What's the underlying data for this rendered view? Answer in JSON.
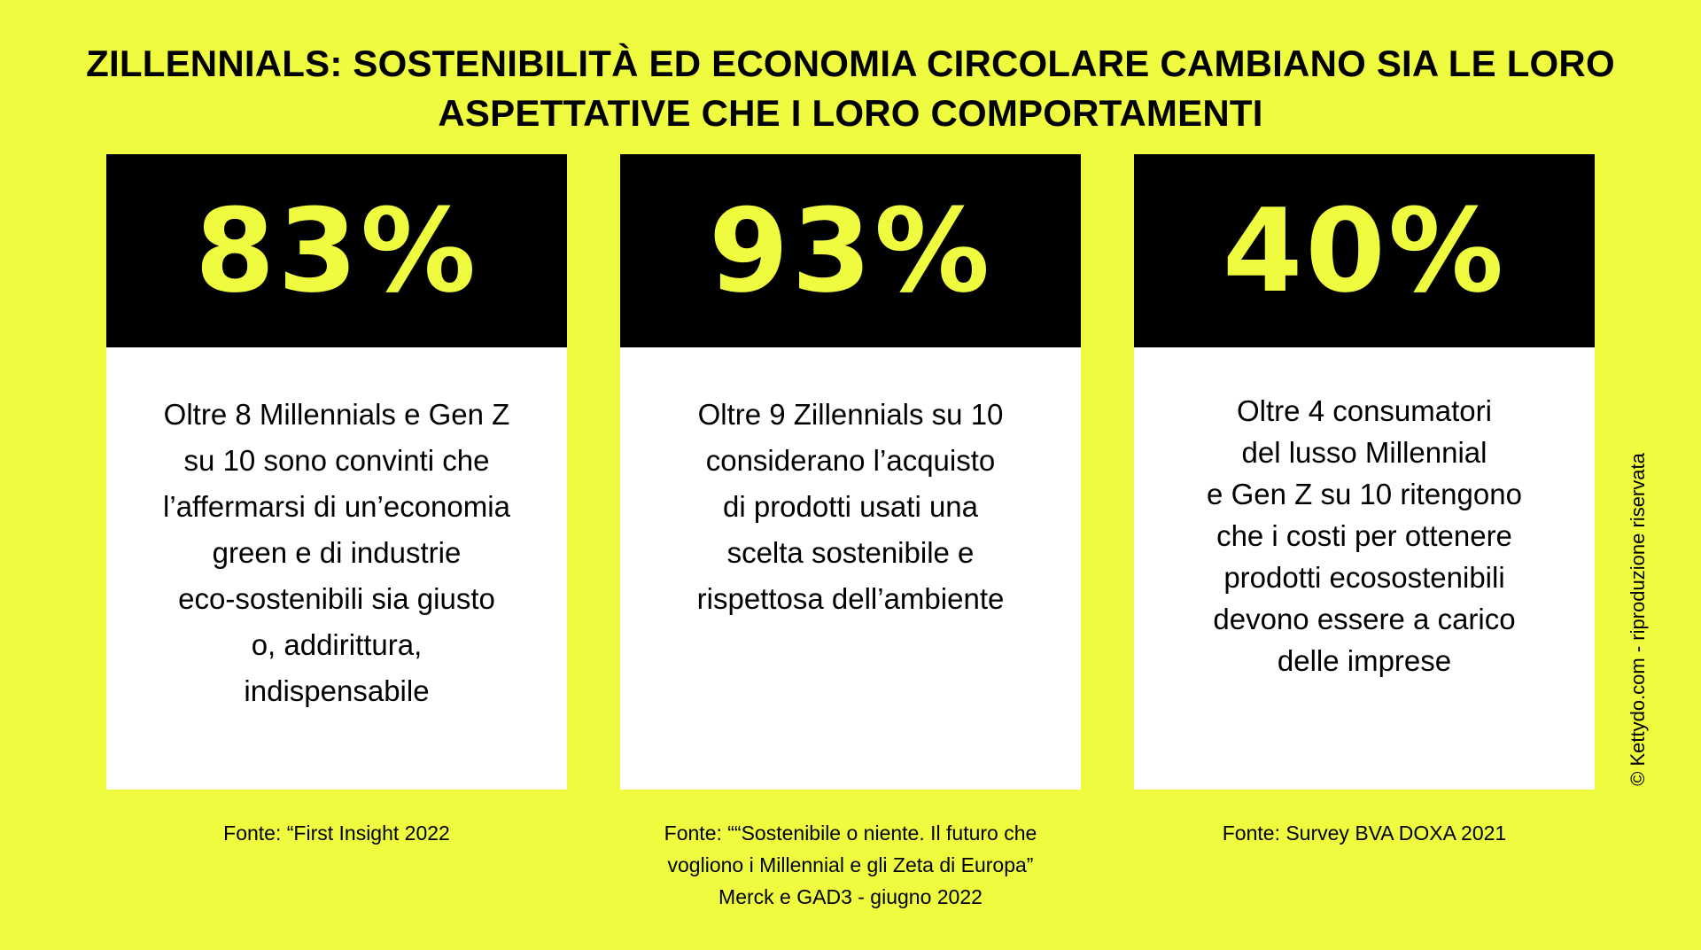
{
  "title": {
    "line1": "ZILLENNIALS: SOSTENIBILITÀ ED ECONOMIA CIRCOLARE CAMBIANO SIA LE LORO",
    "line2": "ASPETTATIVE CHE I LORO COMPORTAMENTI"
  },
  "cards": [
    {
      "stat": "83%",
      "lines": [
        "Oltre 8 Millennials e Gen Z",
        "su 10 sono convinti che",
        "l’affermarsi di un’economia",
        "green e di industrie",
        "eco-sostenibili sia giusto",
        "o, addirittura,",
        "indispensabile"
      ],
      "source_lines": [
        "Fonte: “First Insight 2022"
      ]
    },
    {
      "stat": "93%",
      "lines": [
        "Oltre 9  Zillennials su 10",
        "considerano l’acquisto",
        "di prodotti usati una",
        "scelta sostenibile e",
        "rispettosa dell’ambiente"
      ],
      "source_lines": [
        "Fonte: ““Sostenibile o niente. Il futuro che",
        "vogliono i Millennial e gli Zeta di Europa”",
        "Merck e GAD3 - giugno 2022"
      ]
    },
    {
      "stat": "40%",
      "lines": [
        "Oltre 4 consumatori",
        "del lusso Millennial",
        "e Gen Z su 10 ritengono",
        "che i costi per ottenere",
        "prodotti ecosostenibili",
        "devono essere a carico",
        "delle imprese"
      ],
      "source_lines": [
        "Fonte: Survey BVA DOXA 2021"
      ]
    }
  ],
  "copyright": "© Kettydo.com - riproduzione riservata",
  "colors": {
    "background": "#EEFB3F",
    "card_head": "#000000",
    "card_body": "#FFFFFF",
    "accent": "#EEFB3F"
  }
}
